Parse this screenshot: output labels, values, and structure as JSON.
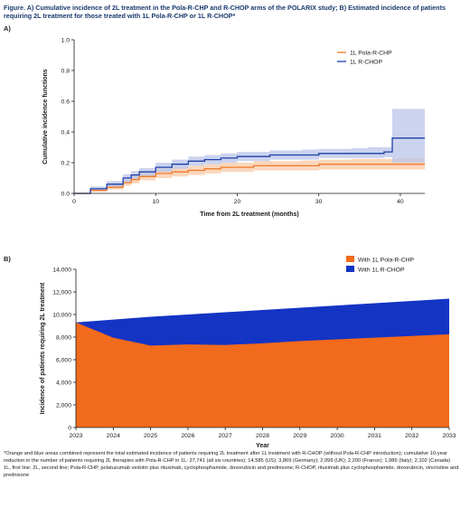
{
  "figure_title": "Figure. A) Cumulative incidence of 2L treatment in the Pola-R-CHP and R-CHOP arms of the POLARIX study; B) Estimated incidence of patients requiring 2L treatment for those treated with 1L Pola-R-CHP or 1L R-CHOP*",
  "panel_a_label": "A)",
  "panel_b_label": "B)",
  "footnotes": [
    "*Orange and blue areas combined represent the total estimated incidence of patients requiring 2L treatment after 1L treatment with R-CHOP (without Pola-R-CHP introduction); cumulative 10-year reduction in the number of patients requiring 2L therapies with Pola-R-CHP in 1L: 27,741 (all six countries); 14,585 (US); 3,869 (Germany); 2,999 (UK); 2,200 (France); 1,986 (Italy); 2,102 (Canada)",
    "1L, first line; 2L, second line; Pola-R-CHP, polatuzumab vedotin plus rituximab, cyclophosphamide, doxorubicin and prednisone; R-CHOP, rituximab plus cyclophosphamide, doxorubicin, vincristine and prednisone"
  ],
  "colors": {
    "pola": "#f07a2a",
    "pola_band": "#f8c9a6",
    "rchop": "#1f3fa8",
    "rchop_band": "#b9c4ea",
    "area_orange": "#f26a1c",
    "area_blue": "#1434c4"
  },
  "chart_data": [
    {
      "type": "line",
      "title": "",
      "xlabel": "Time from 2L treatment (months)",
      "ylabel": "Cumulative incidence functions",
      "xlim": [
        0,
        43
      ],
      "ylim": [
        0,
        1.0
      ],
      "x_ticks": [
        "0",
        "10",
        "20",
        "30",
        "40"
      ],
      "y_ticks": [
        "0.0",
        "0.2",
        "0.4",
        "0.6",
        "0.8",
        "1.0"
      ],
      "legend_position": "top-right",
      "series": [
        {
          "name": "1L Pola-R-CHP",
          "color_key": "pola",
          "x": [
            0,
            2,
            4,
            6,
            7,
            8,
            10,
            12,
            14,
            16,
            18,
            20,
            22,
            24,
            26,
            28,
            30,
            32,
            34,
            36,
            38,
            40,
            43
          ],
          "y": [
            0,
            0.02,
            0.04,
            0.07,
            0.09,
            0.11,
            0.13,
            0.14,
            0.15,
            0.16,
            0.17,
            0.17,
            0.18,
            0.18,
            0.18,
            0.18,
            0.19,
            0.19,
            0.19,
            0.19,
            0.19,
            0.19,
            0.19
          ],
          "ci_low": [
            0,
            0.01,
            0.025,
            0.05,
            0.065,
            0.085,
            0.1,
            0.11,
            0.12,
            0.13,
            0.14,
            0.14,
            0.15,
            0.15,
            0.15,
            0.15,
            0.155,
            0.155,
            0.155,
            0.155,
            0.155,
            0.155,
            0.155
          ],
          "ci_high": [
            0,
            0.03,
            0.055,
            0.09,
            0.115,
            0.135,
            0.16,
            0.17,
            0.18,
            0.19,
            0.2,
            0.2,
            0.21,
            0.21,
            0.21,
            0.215,
            0.22,
            0.22,
            0.225,
            0.225,
            0.225,
            0.23,
            0.23
          ]
        },
        {
          "name": "1L R-CHOP",
          "color_key": "rchop",
          "x": [
            0,
            2,
            4,
            6,
            7,
            8,
            10,
            12,
            14,
            16,
            18,
            20,
            22,
            24,
            26,
            28,
            30,
            32,
            34,
            36,
            38,
            39,
            39.01,
            43
          ],
          "y": [
            0,
            0.03,
            0.06,
            0.1,
            0.12,
            0.14,
            0.17,
            0.19,
            0.21,
            0.22,
            0.23,
            0.24,
            0.24,
            0.25,
            0.25,
            0.25,
            0.26,
            0.26,
            0.26,
            0.26,
            0.27,
            0.27,
            0.36,
            0.36
          ],
          "ci_low": [
            0,
            0.015,
            0.04,
            0.075,
            0.095,
            0.115,
            0.14,
            0.16,
            0.18,
            0.19,
            0.2,
            0.21,
            0.21,
            0.22,
            0.22,
            0.22,
            0.23,
            0.23,
            0.23,
            0.23,
            0.235,
            0.235,
            0.2,
            0.2
          ],
          "ci_high": [
            0,
            0.045,
            0.08,
            0.125,
            0.145,
            0.165,
            0.2,
            0.22,
            0.24,
            0.25,
            0.26,
            0.27,
            0.27,
            0.28,
            0.28,
            0.285,
            0.29,
            0.29,
            0.295,
            0.3,
            0.3,
            0.3,
            0.55,
            0.55
          ]
        }
      ]
    },
    {
      "type": "area",
      "title": "",
      "xlabel": "Year",
      "ylabel": "Incidence of patients requiring 2L treatment",
      "stacked": true,
      "legend_position": "top-right",
      "x": [
        2023,
        2024,
        2025,
        2026,
        2027,
        2028,
        2029,
        2030,
        2031,
        2032,
        2033
      ],
      "xlim": [
        2023,
        2033
      ],
      "ylim": [
        0,
        14000
      ],
      "y_ticks": [
        "0",
        "2,000",
        "4,000",
        "6,000",
        "8,000",
        "10,000",
        "12,000",
        "14,000"
      ],
      "series": [
        {
          "name": "With 1L Pola-R-CHP",
          "color_key": "area_orange",
          "values": [
            9300,
            7950,
            7250,
            7350,
            7300,
            7450,
            7650,
            7800,
            7950,
            8100,
            8250
          ]
        },
        {
          "name": "With 1L R-CHOP",
          "color_key": "area_blue",
          "values": [
            0,
            1600,
            2550,
            2650,
            2900,
            2950,
            2950,
            3000,
            3050,
            3100,
            3150
          ]
        }
      ]
    }
  ]
}
